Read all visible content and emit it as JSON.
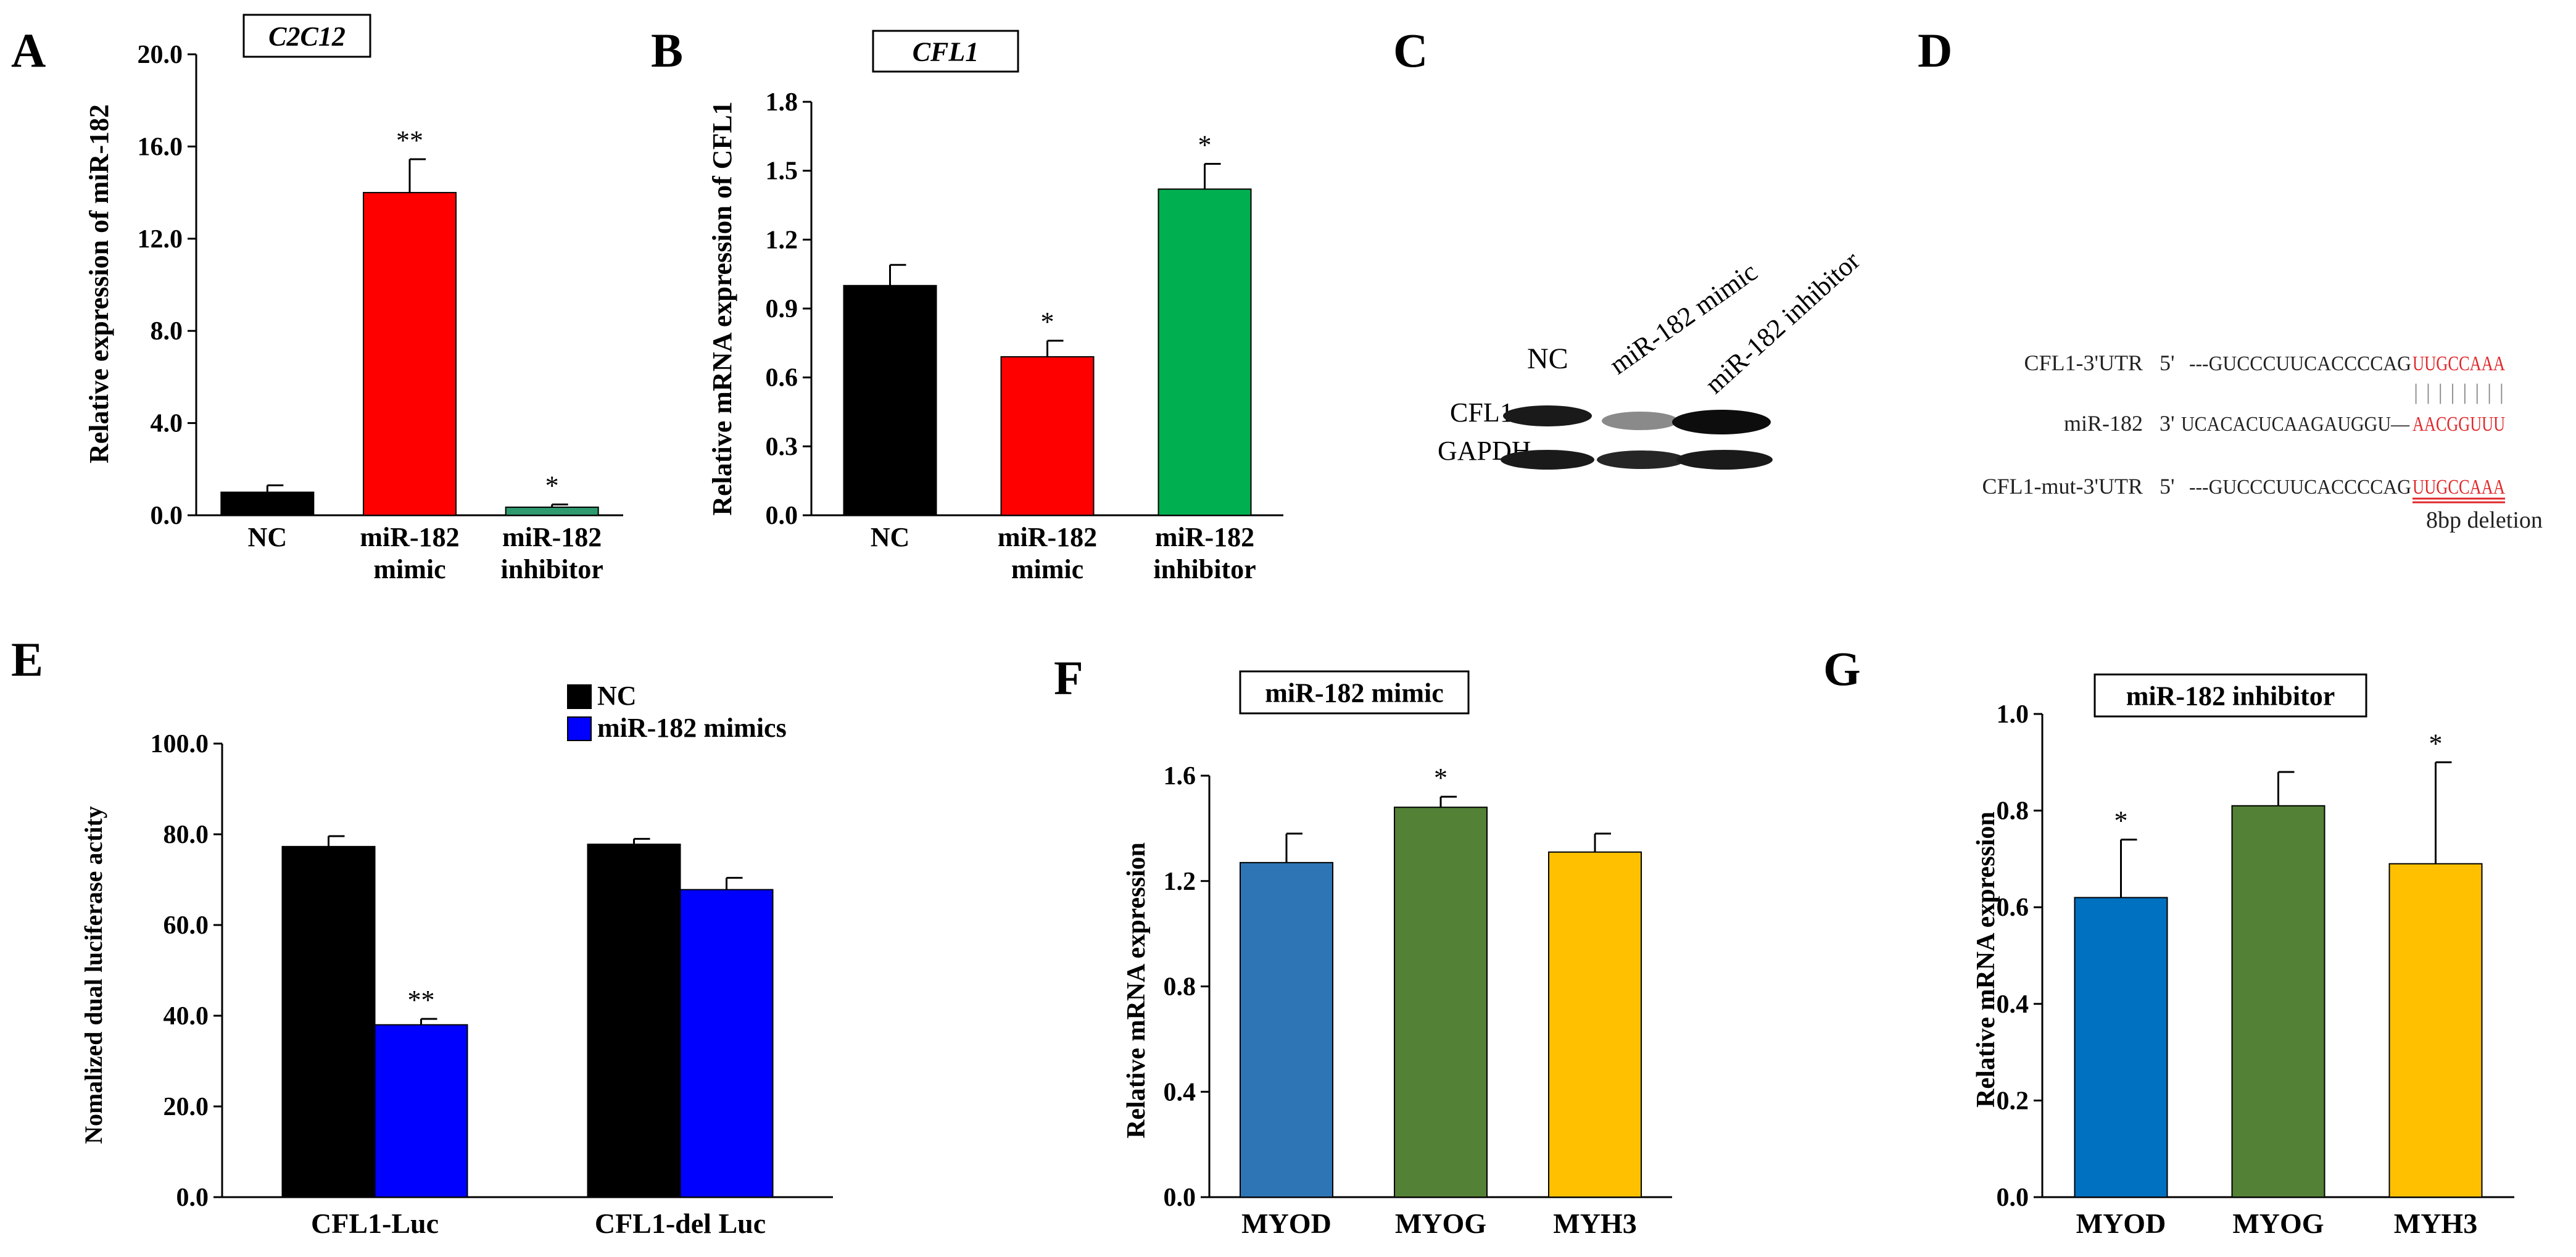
{
  "colors": {
    "black": "#000000",
    "red": "#ff0000",
    "green_a": "#2e9a6e",
    "green_b": "#00b050",
    "blue": "#0000ff",
    "steel_blue": "#2e75b6",
    "olive_green": "#538135",
    "gold": "#ffc000",
    "mid_blue": "#0070c0",
    "seq_red": "#e0282b"
  },
  "panels": {
    "C": {
      "letter": "C",
      "lane_labels": [
        "NC",
        "miR-182 mimic",
        "miR-182 inhibitor"
      ],
      "row_labels": [
        "CFL1",
        "GAPDH"
      ]
    },
    "D": {
      "letter": "D",
      "rows": [
        {
          "name": "CFL1-3'UTR",
          "prefix": "5'",
          "seq": "---GUCCCUUCACCCCAG",
          "highlight": "UUGCCAAA"
        },
        {
          "name": "miR-182",
          "prefix": "3'",
          "seq": "UCACACUCAAGAUGGU—",
          "highlight": "AACGGUUU"
        },
        {
          "name": "CFL1-mut-3'UTR",
          "prefix": "5'",
          "seq": "---GUCCCUUCACCCCAG",
          "highlight": "UUGCCAAA"
        }
      ],
      "pairing": "| | | | | | | |",
      "note": "8bp deletion"
    }
  },
  "chart_data": [
    {
      "panel": "A",
      "type": "bar",
      "title": "C2C12",
      "title_style": "italic-box",
      "categories": [
        [
          "NC"
        ],
        [
          "miR-182",
          "mimic"
        ],
        [
          "miR-182",
          "inhibitor"
        ]
      ],
      "values": [
        1.0,
        14.0,
        0.35
      ],
      "errors": [
        0.3,
        1.45,
        0.12
      ],
      "significance": [
        "",
        "**",
        "*"
      ],
      "colors": [
        "#000000",
        "#ff0000",
        "#2e9a6e"
      ],
      "ylabel": "Relative expression of miR-182",
      "ylim": [
        0,
        20
      ],
      "yticks": [
        "0.0",
        "4.0",
        "8.0",
        "12.0",
        "16.0",
        "20.0"
      ]
    },
    {
      "panel": "B",
      "type": "bar",
      "title": "CFL1",
      "title_style": "italic-box",
      "categories": [
        [
          "NC"
        ],
        [
          "miR-182",
          "mimic"
        ],
        [
          "miR-182",
          "inhibitor"
        ]
      ],
      "values": [
        1.0,
        0.69,
        1.42
      ],
      "errors": [
        0.09,
        0.07,
        0.11
      ],
      "significance": [
        "",
        "*",
        "*"
      ],
      "colors": [
        "#000000",
        "#ff0000",
        "#00b050"
      ],
      "ylabel": "Relative mRNA expression of CFL1",
      "ylim": [
        0,
        1.8
      ],
      "yticks": [
        "0.0",
        "0.3",
        "0.6",
        "0.9",
        "1.2",
        "1.5",
        "1.8"
      ]
    },
    {
      "panel": "E",
      "type": "bar",
      "categories": [
        [
          "CFL1-Luc"
        ],
        [
          "CFL1-del Luc"
        ]
      ],
      "series": [
        {
          "name": "NC",
          "values": [
            77.3,
            77.8
          ],
          "errors": [
            2.3,
            1.2
          ],
          "color": "#000000",
          "significance": [
            "",
            ""
          ]
        },
        {
          "name": "miR-182 mimics",
          "values": [
            38.0,
            67.8
          ],
          "errors": [
            1.3,
            2.6
          ],
          "color": "#0000ff",
          "significance": [
            "**",
            ""
          ]
        }
      ],
      "ylabel": "Nomalized dual luciferase actity",
      "ylim": [
        0,
        100
      ],
      "yticks": [
        "0.0",
        "20.0",
        "40.0",
        "60.0",
        "80.0",
        "100.0"
      ],
      "legend": "top-right"
    },
    {
      "panel": "F",
      "type": "bar",
      "title": "miR-182 mimic",
      "title_style": "bold-box",
      "categories": [
        [
          "MYOD"
        ],
        [
          "MYOG"
        ],
        [
          "MYH3"
        ]
      ],
      "values": [
        1.27,
        1.48,
        1.31
      ],
      "errors": [
        0.11,
        0.04,
        0.07
      ],
      "significance": [
        "",
        "*",
        ""
      ],
      "colors": [
        "#2e75b6",
        "#538135",
        "#ffc000"
      ],
      "ylabel": "Relative mRNA expression",
      "ylim": [
        0,
        1.6
      ],
      "yticks": [
        "0.0",
        "0.4",
        "0.8",
        "1.2",
        "1.6"
      ]
    },
    {
      "panel": "G",
      "type": "bar",
      "title": "miR-182 inhibitor",
      "title_style": "bold-box",
      "categories": [
        [
          "MYOD"
        ],
        [
          "MYOG"
        ],
        [
          "MYH3"
        ]
      ],
      "values": [
        0.62,
        0.81,
        0.69
      ],
      "errors": [
        0.12,
        0.07,
        0.21
      ],
      "significance": [
        "*",
        "",
        "*"
      ],
      "colors": [
        "#0070c0",
        "#538135",
        "#ffc000"
      ],
      "ylabel": "Relative mRNA expression",
      "ylim": [
        0,
        1.0
      ],
      "yticks": [
        "0.0",
        "0.2",
        "0.4",
        "0.6",
        "0.8",
        "1.0"
      ]
    }
  ]
}
